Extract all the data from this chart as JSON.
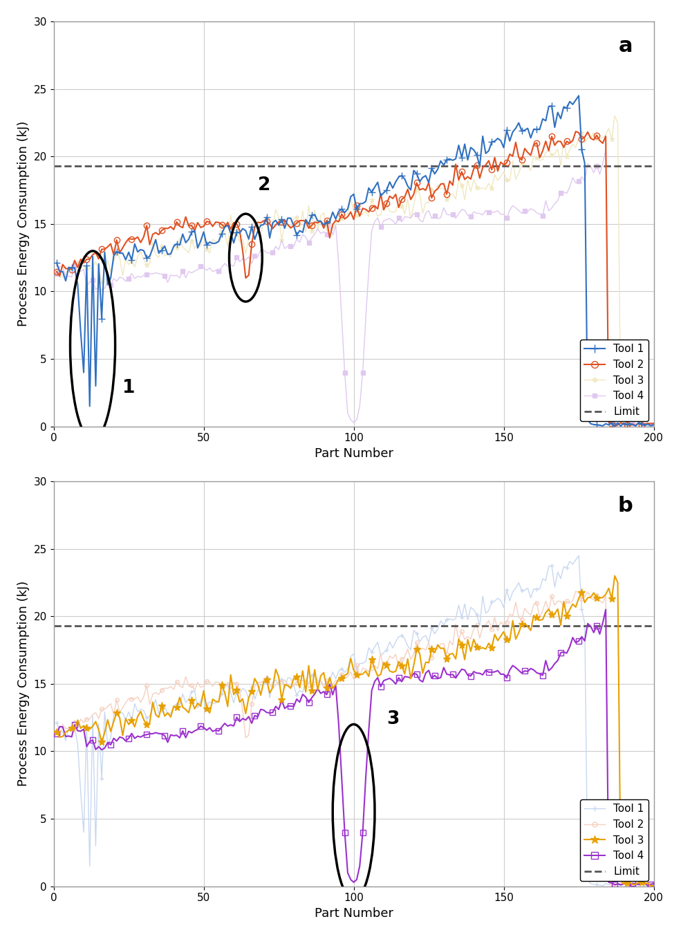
{
  "limit": 19.3,
  "xlim": [
    0,
    200
  ],
  "ylim": [
    0,
    30
  ],
  "yticks": [
    0,
    5,
    10,
    15,
    20,
    25,
    30
  ],
  "xticks": [
    0,
    50,
    100,
    150,
    200
  ],
  "xlabel": "Part Number",
  "ylabel": "Process Energy Consumption (kJ)",
  "title_a": "a",
  "title_b": "b",
  "tool1_color": "#3070C0",
  "tool2_color": "#E05020",
  "tool3_color": "#E8A000",
  "tool4_color": "#9B30CC",
  "tool1_ghost_color": "#C8D8F0",
  "tool2_ghost_color": "#F5D0C0",
  "tool3_ghost_color": "#F0E8C0",
  "tool4_ghost_color": "#E0C8F0",
  "limit_color": "#555555",
  "bg_color": "#FFFFFF",
  "grid_color": "#CCCCCC",
  "figsize": [
    9.85,
    13.55
  ],
  "dpi": 100
}
